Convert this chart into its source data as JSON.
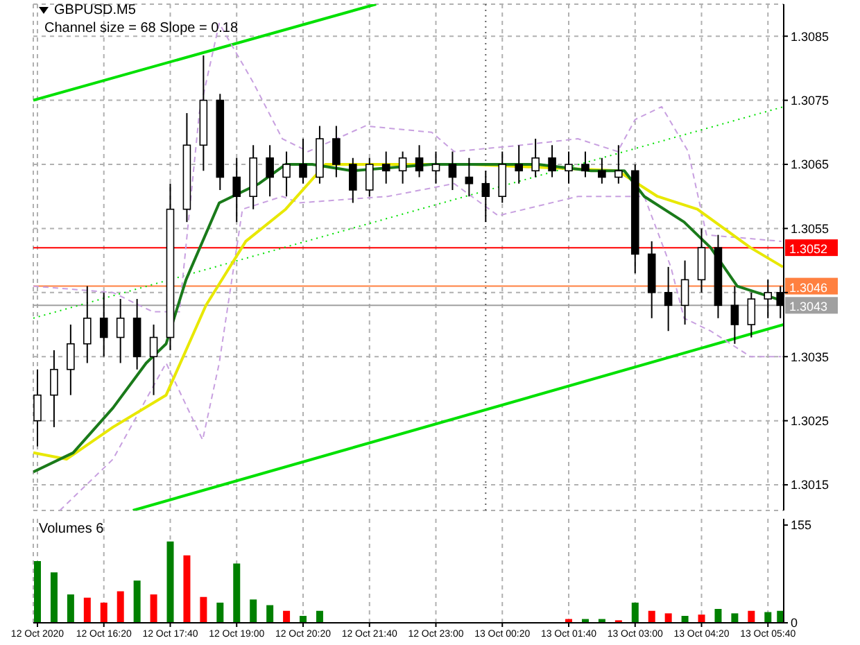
{
  "chart_data": [
    {
      "type": "candlestick",
      "title": "GBPUSD.M5",
      "annotations": [
        "Channel size = 68 Slope = 0.18"
      ],
      "x": [
        "2020-10-12T15:00",
        "2020-10-12T15:20",
        "2020-10-12T15:40",
        "2020-10-12T16:00",
        "2020-10-12T16:20",
        "2020-10-12T16:40",
        "2020-10-12T17:00",
        "2020-10-12T17:20",
        "2020-10-12T17:40",
        "2020-10-12T18:00",
        "2020-10-12T18:20",
        "2020-10-12T18:40",
        "2020-10-12T19:00",
        "2020-10-12T19:20",
        "2020-10-12T19:40",
        "2020-10-12T20:00",
        "2020-10-12T20:20",
        "2020-10-12T20:40",
        "2020-10-12T21:00",
        "2020-10-12T21:20",
        "2020-10-12T21:40",
        "2020-10-12T22:00",
        "2020-10-12T22:20",
        "2020-10-12T22:40",
        "2020-10-12T23:00",
        "2020-10-12T23:20",
        "2020-10-12T23:40",
        "2020-10-13T00:00",
        "2020-10-13T00:20",
        "2020-10-13T00:40",
        "2020-10-13T01:00",
        "2020-10-13T01:20",
        "2020-10-13T01:40",
        "2020-10-13T02:00",
        "2020-10-13T02:20",
        "2020-10-13T02:40",
        "2020-10-13T03:00",
        "2020-10-13T03:20",
        "2020-10-13T03:40",
        "2020-10-13T04:00",
        "2020-10-13T04:20",
        "2020-10-13T04:40",
        "2020-10-13T05:00",
        "2020-10-13T05:20",
        "2020-10-13T05:40",
        "2020-10-13T05:55"
      ],
      "ohlc": [
        [
          1.3025,
          1.3033,
          1.3021,
          1.3029
        ],
        [
          1.3029,
          1.3036,
          1.3024,
          1.3033
        ],
        [
          1.3033,
          1.304,
          1.3029,
          1.3037
        ],
        [
          1.3037,
          1.3046,
          1.3034,
          1.3041
        ],
        [
          1.3041,
          1.3045,
          1.3035,
          1.3038
        ],
        [
          1.3038,
          1.3044,
          1.3034,
          1.3041
        ],
        [
          1.3041,
          1.3044,
          1.3033,
          1.3035
        ],
        [
          1.3035,
          1.304,
          1.3029,
          1.3038
        ],
        [
          1.3038,
          1.3062,
          1.3036,
          1.3058
        ],
        [
          1.3058,
          1.3073,
          1.3056,
          1.3068
        ],
        [
          1.3068,
          1.3082,
          1.3064,
          1.3075
        ],
        [
          1.3075,
          1.3076,
          1.3061,
          1.3063
        ],
        [
          1.3063,
          1.3066,
          1.3056,
          1.306
        ],
        [
          1.306,
          1.3068,
          1.3058,
          1.3066
        ],
        [
          1.3066,
          1.3068,
          1.306,
          1.3063
        ],
        [
          1.3063,
          1.3067,
          1.306,
          1.3065
        ],
        [
          1.3065,
          1.3069,
          1.3062,
          1.3063
        ],
        [
          1.3063,
          1.3071,
          1.3062,
          1.3069
        ],
        [
          1.3069,
          1.3071,
          1.3063,
          1.3065
        ],
        [
          1.3065,
          1.3066,
          1.3059,
          1.3061
        ],
        [
          1.3061,
          1.3066,
          1.306,
          1.3065
        ],
        [
          1.3065,
          1.3067,
          1.3062,
          1.3064
        ],
        [
          1.3064,
          1.3067,
          1.3062,
          1.3066
        ],
        [
          1.3066,
          1.3068,
          1.3063,
          1.3064
        ],
        [
          1.3064,
          1.3067,
          1.3062,
          1.3065
        ],
        [
          1.3065,
          1.3067,
          1.3061,
          1.3063
        ],
        [
          1.3063,
          1.3066,
          1.306,
          1.3062
        ],
        [
          1.3062,
          1.3064,
          1.3056,
          1.306
        ],
        [
          1.306,
          1.3067,
          1.3059,
          1.3065
        ],
        [
          1.3065,
          1.3068,
          1.3062,
          1.3064
        ],
        [
          1.3064,
          1.3069,
          1.3063,
          1.3066
        ],
        [
          1.3066,
          1.3068,
          1.3063,
          1.3064
        ],
        [
          1.3064,
          1.3067,
          1.3062,
          1.3065
        ],
        [
          1.3065,
          1.3067,
          1.3063,
          1.3064
        ],
        [
          1.3064,
          1.3066,
          1.3062,
          1.3063
        ],
        [
          1.3063,
          1.3068,
          1.3062,
          1.3064
        ],
        [
          1.3064,
          1.3065,
          1.3048,
          1.3051
        ],
        [
          1.3051,
          1.3053,
          1.3041,
          1.3045
        ],
        [
          1.3045,
          1.3049,
          1.3039,
          1.3043
        ],
        [
          1.3043,
          1.305,
          1.304,
          1.3047
        ],
        [
          1.3047,
          1.3055,
          1.3045,
          1.3052
        ],
        [
          1.3052,
          1.3054,
          1.3041,
          1.3043
        ],
        [
          1.3043,
          1.3046,
          1.3037,
          1.304
        ],
        [
          1.304,
          1.3045,
          1.3038,
          1.3044
        ],
        [
          1.3044,
          1.3047,
          1.3041,
          1.3045
        ],
        [
          1.3045,
          1.3046,
          1.3041,
          1.3043
        ]
      ],
      "series": [
        {
          "type": "line",
          "color": "#00e000",
          "x": [
            "2020-10-12T14:55",
            "2020-10-12T21:48"
          ],
          "values": [
            1.3075,
            1.309
          ]
        },
        {
          "type": "line",
          "color": "#00e000",
          "x": [
            "2020-10-12T16:55",
            "2020-10-13T05:59"
          ],
          "values": [
            1.3011,
            1.304
          ]
        },
        {
          "type": "line",
          "color": "#00e000",
          "line_style": "dotted",
          "x": [
            "2020-10-12T14:55",
            "2020-10-13T05:59"
          ],
          "values": [
            1.3041,
            1.3074
          ]
        },
        {
          "type": "line",
          "color": "#c8a0e0",
          "line_style": "dashed",
          "x": [
            "2020-10-12T14:55",
            "2020-10-12T16:31",
            "2020-10-12T17:19",
            "2020-10-12T17:51",
            "2020-10-12T18:15",
            "2020-10-12T18:39",
            "2020-10-12T19:19",
            "2020-10-12T19:55",
            "2020-10-12T20:26",
            "2020-10-12T21:35",
            "2020-10-12T22:55",
            "2020-10-12T23:22",
            "2020-10-13T00:43",
            "2020-10-13T01:51",
            "2020-10-13T02:39",
            "2020-10-13T03:00",
            "2020-10-13T03:32",
            "2020-10-13T04:04",
            "2020-10-13T04:26",
            "2020-10-13T05:56"
          ],
          "values": [
            1.3046,
            1.3045,
            1.3042,
            1.3042,
            1.3073,
            1.3087,
            1.3078,
            1.3069,
            1.3067,
            1.3071,
            1.307,
            1.3067,
            1.3068,
            1.3069,
            1.3067,
            1.3072,
            1.3074,
            1.3067,
            1.3054,
            1.3053
          ]
        },
        {
          "type": "line",
          "color": "#c8a0e0",
          "line_style": "dashed",
          "x": [
            "2020-10-12T15:27",
            "2020-10-12T16:31",
            "2020-10-12T17:35",
            "2020-10-12T18:19",
            "2020-10-12T18:39",
            "2020-10-12T19:07",
            "2020-10-12T19:55",
            "2020-10-12T20:15",
            "2020-10-12T22:02",
            "2020-10-12T23:22",
            "2020-10-13T00:15",
            "2020-10-13T01:51",
            "2020-10-13T02:44",
            "2020-10-13T03:11",
            "2020-10-13T03:43",
            "2020-10-13T03:59",
            "2020-10-13T04:31",
            "2020-10-13T05:19",
            "2020-10-13T05:56"
          ],
          "values": [
            1.3011,
            1.3019,
            1.3034,
            1.3022,
            1.3034,
            1.3058,
            1.306,
            1.3059,
            1.306,
            1.3062,
            1.3057,
            1.306,
            1.306,
            1.306,
            1.3049,
            1.3041,
            1.3039,
            1.3035,
            1.3035
          ]
        },
        {
          "type": "line",
          "color": "#e8e800",
          "x": [
            "2020-10-12T14:55",
            "2020-10-12T15:35",
            "2020-10-12T16:31",
            "2020-10-12T17:35",
            "2020-10-12T18:23",
            "2020-10-12T19:11",
            "2020-10-12T19:59",
            "2020-10-12T20:47",
            "2020-10-12T21:35",
            "2020-10-12T23:43",
            "2020-10-13T02:39",
            "2020-10-13T03:27",
            "2020-10-13T04:15",
            "2020-10-13T04:47",
            "2020-10-13T05:19",
            "2020-10-13T05:58"
          ],
          "values": [
            1.302,
            1.3019,
            1.3024,
            1.3029,
            1.3043,
            1.3053,
            1.3058,
            1.3065,
            1.3065,
            1.3065,
            1.3064,
            1.306,
            1.3058,
            1.3055,
            1.3052,
            1.3049
          ]
        },
        {
          "type": "line",
          "color": "#1a7a1a",
          "x": [
            "2020-10-12T14:55",
            "2020-10-12T15:43",
            "2020-10-12T16:31",
            "2020-10-12T17:11",
            "2020-10-12T17:35",
            "2020-10-12T17:59",
            "2020-10-12T18:39",
            "2020-10-12T19:27",
            "2020-10-12T19:59",
            "2020-10-12T20:31",
            "2020-10-12T21:19",
            "2020-10-12T22:55",
            "2020-10-13T01:03",
            "2020-10-13T02:07",
            "2020-10-13T02:47",
            "2020-10-13T03:11",
            "2020-10-13T03:59",
            "2020-10-13T04:31",
            "2020-10-13T05:03",
            "2020-10-13T05:51"
          ],
          "values": [
            1.3017,
            1.302,
            1.3027,
            1.3034,
            1.3037,
            1.3047,
            1.3059,
            1.3062,
            1.3065,
            1.3065,
            1.3064,
            1.3065,
            1.3065,
            1.3064,
            1.3064,
            1.306,
            1.3056,
            1.3052,
            1.3046,
            1.3044
          ]
        }
      ],
      "ref_lines": [
        {
          "axis": "y",
          "value": 1.3052,
          "label": "1.3052",
          "color": "#ff0000"
        },
        {
          "axis": "y",
          "value": 1.3046,
          "label": "1.3046",
          "color": "#ff8040"
        },
        {
          "axis": "y",
          "value": 1.3043,
          "label": "1.3043",
          "color": "#a0a0a0"
        },
        {
          "axis": "x",
          "value": "2020-10-13T00:00",
          "label": null,
          "color": "#606060",
          "line_style": "dotted"
        }
      ],
      "xlim": [
        "2020-10-12T14:55",
        "2020-10-13T05:59"
      ],
      "xticks": [
        {
          "value": "2020-10-12T15:00",
          "label": null
        },
        {
          "value": "2020-10-12T16:20",
          "label": null
        },
        {
          "value": "2020-10-12T17:40",
          "label": null
        },
        {
          "value": "2020-10-12T19:00",
          "label": null
        },
        {
          "value": "2020-10-12T20:20",
          "label": null
        },
        {
          "value": "2020-10-12T21:40",
          "label": null
        },
        {
          "value": "2020-10-12T23:00",
          "label": null
        },
        {
          "value": "2020-10-13T00:20",
          "label": null
        },
        {
          "value": "2020-10-13T01:40",
          "label": null
        },
        {
          "value": "2020-10-13T03:00",
          "label": null
        },
        {
          "value": "2020-10-13T04:20",
          "label": null
        },
        {
          "value": "2020-10-13T05:40",
          "label": null
        }
      ],
      "ylim": [
        1.3011,
        1.309
      ],
      "yticks": [
        1.3015,
        1.3025,
        1.3035,
        {
          "value": 1.3045,
          "label": null
        },
        1.3055,
        1.3065,
        1.3075,
        1.3085
      ],
      "tick_labels": "y",
      "grid": true
    },
    {
      "type": "bar",
      "title": "Volumes 6",
      "x": [
        "2020-10-12T15:00",
        "2020-10-12T15:20",
        "2020-10-12T15:40",
        "2020-10-12T16:00",
        "2020-10-12T16:20",
        "2020-10-12T16:40",
        "2020-10-12T17:00",
        "2020-10-12T17:20",
        "2020-10-12T17:40",
        "2020-10-12T18:00",
        "2020-10-12T18:20",
        "2020-10-12T18:40",
        "2020-10-12T19:00",
        "2020-10-12T19:20",
        "2020-10-12T19:40",
        "2020-10-12T20:00",
        "2020-10-12T20:20",
        "2020-10-12T20:40",
        "2020-10-12T21:00",
        "2020-10-12T21:20",
        "2020-10-12T21:40",
        "2020-10-12T22:00",
        "2020-10-12T22:20",
        "2020-10-12T22:40",
        "2020-10-12T23:00",
        "2020-10-12T23:20",
        "2020-10-12T23:40",
        "2020-10-13T00:00",
        "2020-10-13T00:20",
        "2020-10-13T00:40",
        "2020-10-13T01:00",
        "2020-10-13T01:20",
        "2020-10-13T01:40",
        "2020-10-13T02:00",
        "2020-10-13T02:20",
        "2020-10-13T02:40",
        "2020-10-13T03:00",
        "2020-10-13T03:20",
        "2020-10-13T03:40",
        "2020-10-13T04:00",
        "2020-10-13T04:20",
        "2020-10-13T04:40",
        "2020-10-13T05:00",
        "2020-10-13T05:20",
        "2020-10-13T05:40",
        "2020-10-13T05:55"
      ],
      "values": [
        98,
        80,
        45,
        40,
        32,
        50,
        67,
        45,
        129,
        107,
        41,
        32,
        94,
        37,
        28,
        19,
        11,
        19,
        null,
        null,
        null,
        null,
        null,
        null,
        null,
        null,
        null,
        null,
        null,
        null,
        null,
        null,
        6,
        6,
        6,
        4,
        32,
        19,
        15,
        11,
        13,
        22,
        15,
        19,
        17,
        19
      ],
      "colors": [
        "#008000",
        "#008000",
        "#008000",
        "#ff0000",
        "#ff0000",
        "#ff0000",
        "#008000",
        "#ff0000",
        "#008000",
        "#ff0000",
        "#ff0000",
        "#008000",
        "#008000",
        "#008000",
        "#008000",
        "#ff0000",
        "#008000",
        "#008000",
        null,
        null,
        null,
        null,
        null,
        null,
        null,
        null,
        null,
        null,
        null,
        null,
        null,
        null,
        "#ff0000",
        "#008000",
        "#008000",
        "#ff0000",
        "#008000",
        "#ff0000",
        "#ff0000",
        "#008000",
        "#ff0000",
        "#008000",
        "#008000",
        "#ff0000",
        "#008000",
        "#008000"
      ],
      "xlim": [
        "2020-10-12T14:55",
        "2020-10-13T05:59"
      ],
      "xticks": [
        {
          "value": "2020-10-12T15:00",
          "label": "12 Oct 2020"
        },
        {
          "value": "2020-10-12T16:20",
          "label": "12 Oct 16:20"
        },
        {
          "value": "2020-10-12T17:40",
          "label": "12 Oct 17:40"
        },
        {
          "value": "2020-10-12T19:00",
          "label": "12 Oct 19:00"
        },
        {
          "value": "2020-10-12T20:20",
          "label": "12 Oct 20:20"
        },
        {
          "value": "2020-10-12T21:40",
          "label": "12 Oct 21:40"
        },
        {
          "value": "2020-10-12T23:00",
          "label": "12 Oct 23:00"
        },
        {
          "value": "2020-10-13T00:20",
          "label": "13 Oct 00:20"
        },
        {
          "value": "2020-10-13T01:40",
          "label": "13 Oct 01:40"
        },
        {
          "value": "2020-10-13T03:00",
          "label": "13 Oct 03:00"
        },
        {
          "value": "2020-10-13T04:20",
          "label": "13 Oct 04:20"
        },
        {
          "value": "2020-10-13T05:40",
          "label": "13 Oct 05:40"
        }
      ],
      "ylim": [
        0,
        165
      ],
      "yticks": [
        0,
        155
      ],
      "grid": "x"
    }
  ]
}
